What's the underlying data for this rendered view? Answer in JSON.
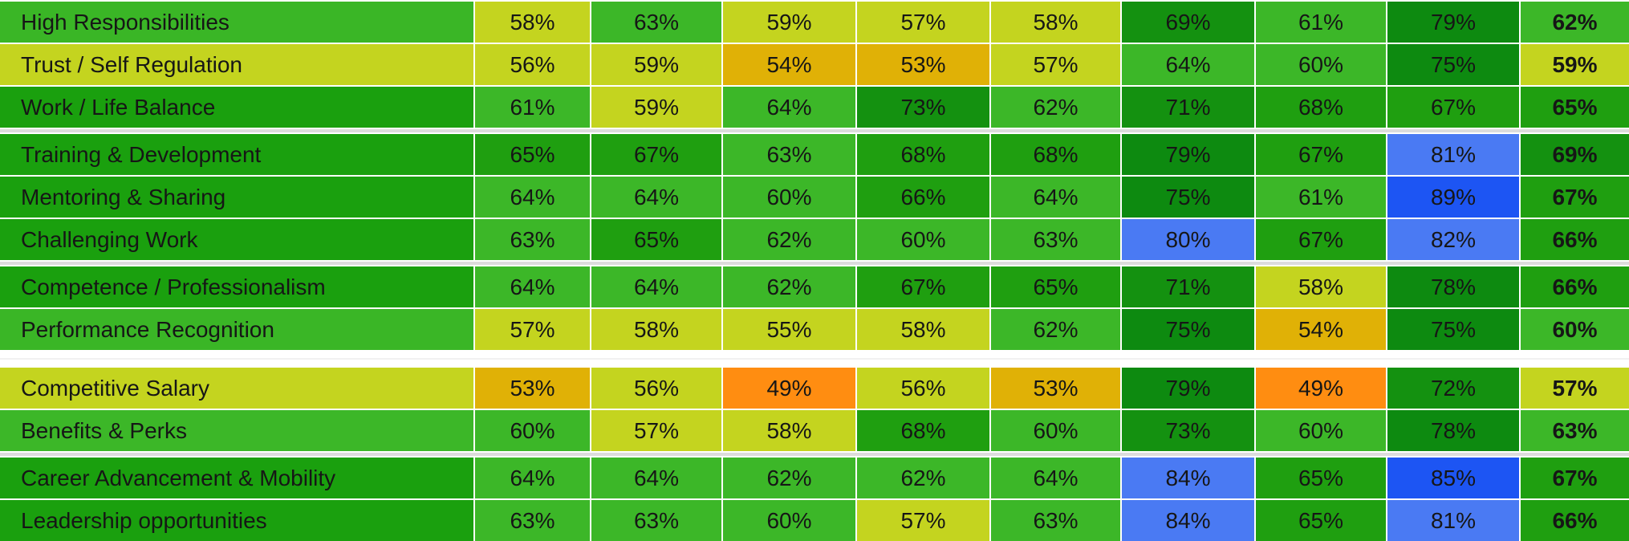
{
  "table": {
    "value_format": "percent",
    "last_column_is_total_bold": true,
    "sections": [
      {
        "gap_after": "group",
        "rows": [
          {
            "label": "High Responsibilities",
            "label_color": "#3ab626",
            "cells": [
              {
                "value": "58%",
                "color": "#c4d41f"
              },
              {
                "value": "63%",
                "color": "#3cb728"
              },
              {
                "value": "59%",
                "color": "#c4d41f"
              },
              {
                "value": "57%",
                "color": "#c4d41f"
              },
              {
                "value": "58%",
                "color": "#c4d41f"
              },
              {
                "value": "69%",
                "color": "#149110"
              },
              {
                "value": "61%",
                "color": "#3cb728"
              },
              {
                "value": "79%",
                "color": "#0d8a10"
              },
              {
                "value": "62%",
                "color": "#3cb728"
              }
            ]
          },
          {
            "label": "Trust / Self Regulation",
            "label_color": "#c4d41f",
            "cells": [
              {
                "value": "56%",
                "color": "#c4d41f"
              },
              {
                "value": "59%",
                "color": "#c4d41f"
              },
              {
                "value": "54%",
                "color": "#e0b106"
              },
              {
                "value": "53%",
                "color": "#e0b106"
              },
              {
                "value": "57%",
                "color": "#c4d41f"
              },
              {
                "value": "64%",
                "color": "#3cb728"
              },
              {
                "value": "60%",
                "color": "#3cb728"
              },
              {
                "value": "75%",
                "color": "#0d8a10"
              },
              {
                "value": "59%",
                "color": "#c4d41f"
              }
            ]
          },
          {
            "label": "Work / Life Balance",
            "label_color": "#1aa00e",
            "cells": [
              {
                "value": "61%",
                "color": "#3cb728"
              },
              {
                "value": "59%",
                "color": "#c4d41f"
              },
              {
                "value": "64%",
                "color": "#3cb728"
              },
              {
                "value": "73%",
                "color": "#149110"
              },
              {
                "value": "62%",
                "color": "#3cb728"
              },
              {
                "value": "71%",
                "color": "#149110"
              },
              {
                "value": "68%",
                "color": "#1f9f10"
              },
              {
                "value": "67%",
                "color": "#1f9f10"
              },
              {
                "value": "65%",
                "color": "#1f9f10"
              }
            ]
          }
        ]
      },
      {
        "gap_after": "group",
        "rows": [
          {
            "label": "Training & Development",
            "label_color": "#1aa00e",
            "cells": [
              {
                "value": "65%",
                "color": "#1f9f10"
              },
              {
                "value": "67%",
                "color": "#1f9f10"
              },
              {
                "value": "63%",
                "color": "#3cb728"
              },
              {
                "value": "68%",
                "color": "#1f9f10"
              },
              {
                "value": "68%",
                "color": "#1f9f10"
              },
              {
                "value": "79%",
                "color": "#0d8a10"
              },
              {
                "value": "67%",
                "color": "#1f9f10"
              },
              {
                "value": "81%",
                "color": "#4a7af3"
              },
              {
                "value": "69%",
                "color": "#149110"
              }
            ]
          },
          {
            "label": "Mentoring & Sharing",
            "label_color": "#1aa00e",
            "cells": [
              {
                "value": "64%",
                "color": "#3cb728"
              },
              {
                "value": "64%",
                "color": "#3cb728"
              },
              {
                "value": "60%",
                "color": "#3cb728"
              },
              {
                "value": "66%",
                "color": "#1f9f10"
              },
              {
                "value": "64%",
                "color": "#3cb728"
              },
              {
                "value": "75%",
                "color": "#0d8a10"
              },
              {
                "value": "61%",
                "color": "#3cb728"
              },
              {
                "value": "89%",
                "color": "#1d55f3"
              },
              {
                "value": "67%",
                "color": "#1f9f10"
              }
            ]
          },
          {
            "label": "Challenging Work",
            "label_color": "#1aa00e",
            "cells": [
              {
                "value": "63%",
                "color": "#3cb728"
              },
              {
                "value": "65%",
                "color": "#1f9f10"
              },
              {
                "value": "62%",
                "color": "#3cb728"
              },
              {
                "value": "60%",
                "color": "#3cb728"
              },
              {
                "value": "63%",
                "color": "#3cb728"
              },
              {
                "value": "80%",
                "color": "#4a7af3"
              },
              {
                "value": "67%",
                "color": "#1f9f10"
              },
              {
                "value": "82%",
                "color": "#4a7af3"
              },
              {
                "value": "66%",
                "color": "#1f9f10"
              }
            ]
          }
        ]
      },
      {
        "gap_after": "section",
        "rows": [
          {
            "label": "Competence / Professionalism",
            "label_color": "#1aa00e",
            "cells": [
              {
                "value": "64%",
                "color": "#3cb728"
              },
              {
                "value": "64%",
                "color": "#3cb728"
              },
              {
                "value": "62%",
                "color": "#3cb728"
              },
              {
                "value": "67%",
                "color": "#1f9f10"
              },
              {
                "value": "65%",
                "color": "#1f9f10"
              },
              {
                "value": "71%",
                "color": "#149110"
              },
              {
                "value": "58%",
                "color": "#c4d41f"
              },
              {
                "value": "78%",
                "color": "#0d8a10"
              },
              {
                "value": "66%",
                "color": "#1f9f10"
              }
            ]
          },
          {
            "label": "Performance Recognition",
            "label_color": "#3ab626",
            "cells": [
              {
                "value": "57%",
                "color": "#c4d41f"
              },
              {
                "value": "58%",
                "color": "#c4d41f"
              },
              {
                "value": "55%",
                "color": "#c4d41f"
              },
              {
                "value": "58%",
                "color": "#c4d41f"
              },
              {
                "value": "62%",
                "color": "#3cb728"
              },
              {
                "value": "75%",
                "color": "#0d8a10"
              },
              {
                "value": "54%",
                "color": "#e0b106"
              },
              {
                "value": "75%",
                "color": "#0d8a10"
              },
              {
                "value": "60%",
                "color": "#3cb728"
              }
            ]
          }
        ]
      },
      {
        "gap_after": "group",
        "rows": [
          {
            "label": "Competitive Salary",
            "label_color": "#c4d41f",
            "cells": [
              {
                "value": "53%",
                "color": "#e0b106"
              },
              {
                "value": "56%",
                "color": "#c4d41f"
              },
              {
                "value": "49%",
                "color": "#ff8d11"
              },
              {
                "value": "56%",
                "color": "#c4d41f"
              },
              {
                "value": "53%",
                "color": "#e0b106"
              },
              {
                "value": "79%",
                "color": "#0d8a10"
              },
              {
                "value": "49%",
                "color": "#ff8d11"
              },
              {
                "value": "72%",
                "color": "#149110"
              },
              {
                "value": "57%",
                "color": "#c4d41f"
              }
            ]
          },
          {
            "label": "Benefits & Perks",
            "label_color": "#3cb728",
            "cells": [
              {
                "value": "60%",
                "color": "#3cb728"
              },
              {
                "value": "57%",
                "color": "#c4d41f"
              },
              {
                "value": "58%",
                "color": "#c4d41f"
              },
              {
                "value": "68%",
                "color": "#1f9f10"
              },
              {
                "value": "60%",
                "color": "#3cb728"
              },
              {
                "value": "73%",
                "color": "#149110"
              },
              {
                "value": "60%",
                "color": "#3cb728"
              },
              {
                "value": "78%",
                "color": "#0d8a10"
              },
              {
                "value": "63%",
                "color": "#3cb728"
              }
            ]
          }
        ]
      },
      {
        "gap_after": null,
        "rows": [
          {
            "label": "Career Advancement & Mobility",
            "label_color": "#1aa00e",
            "cells": [
              {
                "value": "64%",
                "color": "#3cb728"
              },
              {
                "value": "64%",
                "color": "#3cb728"
              },
              {
                "value": "62%",
                "color": "#3cb728"
              },
              {
                "value": "62%",
                "color": "#3cb728"
              },
              {
                "value": "64%",
                "color": "#3cb728"
              },
              {
                "value": "84%",
                "color": "#4a7af3"
              },
              {
                "value": "65%",
                "color": "#1f9f10"
              },
              {
                "value": "85%",
                "color": "#1d55f3"
              },
              {
                "value": "67%",
                "color": "#1f9f10"
              }
            ]
          },
          {
            "label": "Leadership opportunities",
            "label_color": "#1aa00e",
            "cells": [
              {
                "value": "63%",
                "color": "#3cb728"
              },
              {
                "value": "63%",
                "color": "#3cb728"
              },
              {
                "value": "60%",
                "color": "#3cb728"
              },
              {
                "value": "57%",
                "color": "#c4d41f"
              },
              {
                "value": "63%",
                "color": "#3cb728"
              },
              {
                "value": "84%",
                "color": "#4a7af3"
              },
              {
                "value": "65%",
                "color": "#1f9f10"
              },
              {
                "value": "81%",
                "color": "#4a7af3"
              },
              {
                "value": "66%",
                "color": "#1f9f10"
              }
            ]
          }
        ]
      }
    ]
  },
  "chart_data": {
    "type": "heatmap",
    "rows": [
      "High Responsibilities",
      "Trust / Self Regulation",
      "Work / Life Balance",
      "Training & Development",
      "Mentoring & Sharing",
      "Challenging Work",
      "Competence / Professionalism",
      "Performance Recognition",
      "Competitive Salary",
      "Benefits & Perks",
      "Career Advancement & Mobility",
      "Leadership opportunities"
    ],
    "values": [
      [
        58,
        63,
        59,
        57,
        58,
        69,
        61,
        79,
        62
      ],
      [
        56,
        59,
        54,
        53,
        57,
        64,
        60,
        75,
        59
      ],
      [
        61,
        59,
        64,
        73,
        62,
        71,
        68,
        67,
        65
      ],
      [
        65,
        67,
        63,
        68,
        68,
        79,
        67,
        81,
        69
      ],
      [
        64,
        64,
        60,
        66,
        64,
        75,
        61,
        89,
        67
      ],
      [
        63,
        65,
        62,
        60,
        63,
        80,
        67,
        82,
        66
      ],
      [
        64,
        64,
        62,
        67,
        65,
        71,
        58,
        78,
        66
      ],
      [
        57,
        58,
        55,
        58,
        62,
        75,
        54,
        75,
        60
      ],
      [
        53,
        56,
        49,
        56,
        53,
        79,
        49,
        72,
        57
      ],
      [
        60,
        57,
        58,
        68,
        60,
        73,
        60,
        78,
        63
      ],
      [
        64,
        64,
        62,
        62,
        64,
        84,
        65,
        85,
        67
      ],
      [
        63,
        63,
        60,
        57,
        63,
        84,
        65,
        81,
        66
      ]
    ],
    "value_format": "percent",
    "last_column_is_total": true,
    "legend": "none",
    "color_key": {
      "#ff8d11": "orange (lowest, 49%)",
      "#e0b106": "gold (53-54%)",
      "#c4d41f": "yellow-green (55-59%)",
      "#3cb728": "medium green (60-64%)",
      "#1f9f10": "green (65-68%)",
      "#149110": "dark green (69-73%)",
      "#0d8a10": "darkest green (75-79%)",
      "#4a7af3": "light blue (80-84%)",
      "#1d55f3": "strong blue (85-89%)"
    }
  }
}
